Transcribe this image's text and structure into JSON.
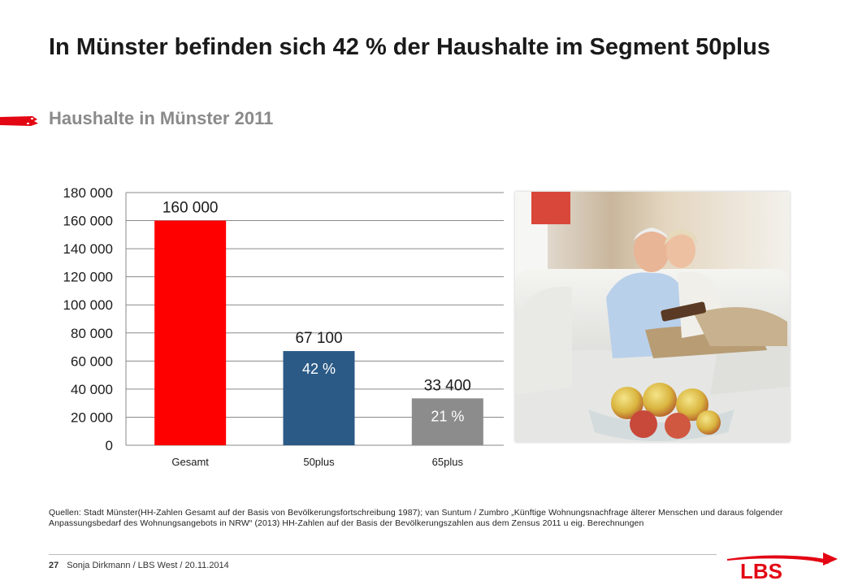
{
  "slide": {
    "title": "In Münster befinden sich 42 % der Haushalte im Segment 50plus",
    "subtitle": "Haushalte in Münster 2011",
    "source": "Quellen: Stadt Münster(HH-Zahlen Gesamt auf der Basis von Bevölkerungsfortschreibung 1987); van Suntum / Zumbro „Künftige Wohnungsnachfrage älterer Menschen und daraus folgender Anpassungsbedarf des Wohnungsangebots in NRW“ (2013) HH-Zahlen auf der Basis der Bevölkerungszahlen aus dem Zensus 2011 u eig. Berechnungen",
    "page_number": "27",
    "footer": "Sonja Dirkmann / LBS West / 20.11.2014",
    "logo_text": "LBS"
  },
  "colors": {
    "accent_red": "#e30613",
    "subtitle_gray": "#8a8a8a",
    "bar_gesamt": "#ff0000",
    "bar_50plus": "#2b5a86",
    "bar_65plus": "#8c8c8c"
  },
  "chart_data": {
    "type": "bar",
    "categories": [
      "Gesamt",
      "50plus",
      "65plus"
    ],
    "values": [
      160000,
      67100,
      33400
    ],
    "value_labels": [
      "160 000",
      "67 100",
      "33 400"
    ],
    "share_labels": [
      "",
      "42 %",
      "21 %"
    ],
    "bar_colors": [
      "#ff0000",
      "#2b5a86",
      "#8c8c8c"
    ],
    "ylim": [
      0,
      180000
    ],
    "yticks": [
      0,
      20000,
      40000,
      60000,
      80000,
      100000,
      120000,
      140000,
      160000,
      180000
    ],
    "ytick_labels": [
      "0",
      "20 000",
      "40 000",
      "60 000",
      "80 000",
      "100 000",
      "120 000",
      "140 000",
      "160 000",
      "180 000"
    ],
    "grid": true,
    "legend": "none"
  }
}
